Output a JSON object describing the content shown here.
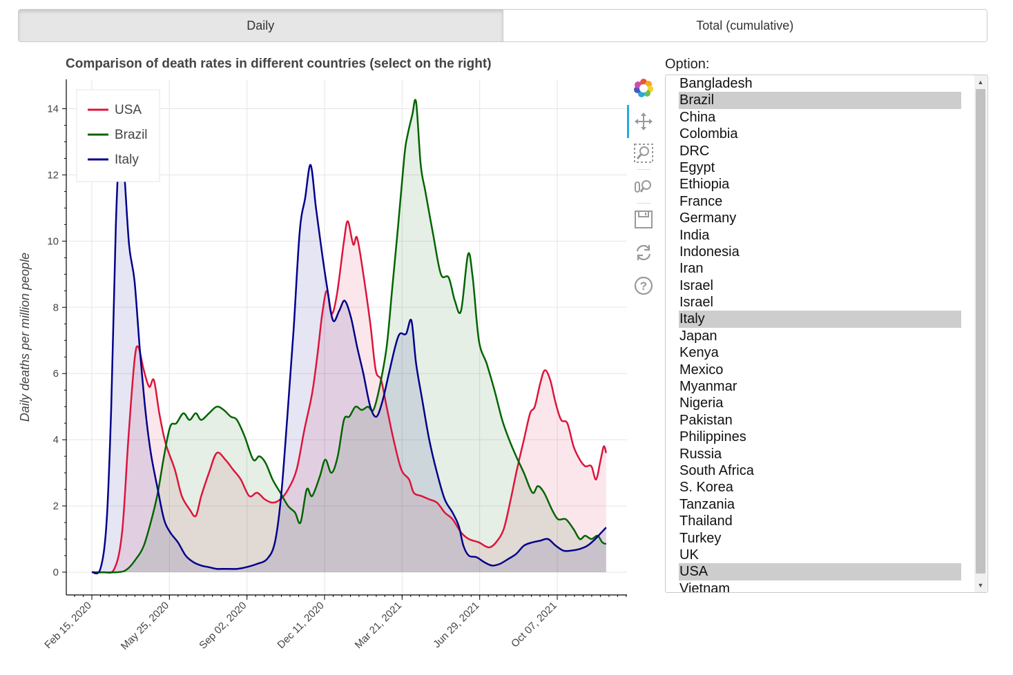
{
  "tabs": [
    {
      "label": "Daily",
      "active": true
    },
    {
      "label": "Total (cumulative)",
      "active": false
    }
  ],
  "toolbar": {
    "tools": [
      "bokeh-logo-icon",
      "pan-icon",
      "box-zoom-icon",
      "wheel-zoom-icon",
      "save-icon",
      "reset-icon",
      "help-icon"
    ]
  },
  "select": {
    "label": "Option:",
    "options": [
      "Bangladesh",
      "Brazil",
      "China",
      "Colombia",
      "DRC",
      "Egypt",
      "Ethiopia",
      "France",
      "Germany",
      "India",
      "Indonesia",
      "Iran",
      "Israel",
      "Israel",
      "Italy",
      "Japan",
      "Kenya",
      "Mexico",
      "Myanmar",
      "Nigeria",
      "Pakistan",
      "Philippines",
      "Russia",
      "South Africa",
      "S. Korea",
      "Tanzania",
      "Thailand",
      "Turkey",
      "UK",
      "USA",
      "Vietnam"
    ],
    "selected": [
      "Brazil",
      "Italy",
      "USA"
    ]
  },
  "chart_data": {
    "type": "area",
    "title": "Comparison of death rates in different countries (select on the right)",
    "xlabel": "",
    "ylabel": "Daily deaths per million people",
    "x_ticks": [
      "Feb 15, 2020",
      "May 25, 2020",
      "Sep 02, 2020",
      "Dec 11, 2020",
      "Mar 21, 2021",
      "Jun 29, 2021",
      "Oct 07, 2021"
    ],
    "x_tick_dates": [
      "2020-02-15",
      "2020-05-25",
      "2020-09-02",
      "2020-12-11",
      "2021-03-21",
      "2021-06-29",
      "2021-10-07"
    ],
    "xlim": [
      "2020-01-20",
      "2022-01-15"
    ],
    "ylim": [
      -0.7,
      14.9
    ],
    "y_ticks": [
      0,
      2,
      4,
      6,
      8,
      10,
      12,
      14
    ],
    "grid": true,
    "legend_position": "top-left",
    "series": [
      {
        "name": "USA",
        "color": "#dc143c",
        "fill": "#dc143c",
        "points": [
          [
            "2020-02-15",
            0
          ],
          [
            "2020-03-01",
            0
          ],
          [
            "2020-03-15",
            0.1
          ],
          [
            "2020-03-25",
            1.2
          ],
          [
            "2020-04-02",
            4.0
          ],
          [
            "2020-04-10",
            6.4
          ],
          [
            "2020-04-15",
            6.8
          ],
          [
            "2020-04-22",
            6.1
          ],
          [
            "2020-04-29",
            5.6
          ],
          [
            "2020-05-05",
            5.8
          ],
          [
            "2020-05-12",
            4.8
          ],
          [
            "2020-05-20",
            3.9
          ],
          [
            "2020-06-01",
            3.1
          ],
          [
            "2020-06-10",
            2.3
          ],
          [
            "2020-06-20",
            1.9
          ],
          [
            "2020-06-28",
            1.7
          ],
          [
            "2020-07-05",
            2.3
          ],
          [
            "2020-07-15",
            3.0
          ],
          [
            "2020-07-25",
            3.6
          ],
          [
            "2020-08-05",
            3.4
          ],
          [
            "2020-08-15",
            3.1
          ],
          [
            "2020-08-25",
            2.8
          ],
          [
            "2020-09-05",
            2.3
          ],
          [
            "2020-09-15",
            2.4
          ],
          [
            "2020-09-25",
            2.2
          ],
          [
            "2020-10-05",
            2.1
          ],
          [
            "2020-10-15",
            2.2
          ],
          [
            "2020-10-25",
            2.5
          ],
          [
            "2020-11-05",
            3.1
          ],
          [
            "2020-11-15",
            4.3
          ],
          [
            "2020-11-25",
            5.4
          ],
          [
            "2020-12-02",
            6.6
          ],
          [
            "2020-12-08",
            7.8
          ],
          [
            "2020-12-14",
            8.5
          ],
          [
            "2020-12-20",
            7.8
          ],
          [
            "2020-12-27",
            8.4
          ],
          [
            "2021-01-05",
            10.0
          ],
          [
            "2021-01-10",
            10.6
          ],
          [
            "2021-01-17",
            9.9
          ],
          [
            "2021-01-22",
            10.1
          ],
          [
            "2021-01-30",
            9.0
          ],
          [
            "2021-02-08",
            7.5
          ],
          [
            "2021-02-15",
            6.1
          ],
          [
            "2021-02-22",
            5.8
          ],
          [
            "2021-03-01",
            5.0
          ],
          [
            "2021-03-10",
            4.0
          ],
          [
            "2021-03-20",
            3.1
          ],
          [
            "2021-03-30",
            2.8
          ],
          [
            "2021-04-05",
            2.4
          ],
          [
            "2021-04-15",
            2.3
          ],
          [
            "2021-04-25",
            2.2
          ],
          [
            "2021-05-05",
            2.1
          ],
          [
            "2021-05-15",
            1.8
          ],
          [
            "2021-05-25",
            1.6
          ],
          [
            "2021-06-05",
            1.2
          ],
          [
            "2021-06-15",
            1.0
          ],
          [
            "2021-06-28",
            0.9
          ],
          [
            "2021-07-05",
            0.8
          ],
          [
            "2021-07-12",
            0.75
          ],
          [
            "2021-07-20",
            0.9
          ],
          [
            "2021-07-30",
            1.3
          ],
          [
            "2021-08-08",
            2.2
          ],
          [
            "2021-08-16",
            3.1
          ],
          [
            "2021-08-25",
            4.0
          ],
          [
            "2021-09-02",
            4.8
          ],
          [
            "2021-09-08",
            5.0
          ],
          [
            "2021-09-15",
            5.7
          ],
          [
            "2021-09-21",
            6.1
          ],
          [
            "2021-09-28",
            5.8
          ],
          [
            "2021-10-05",
            5.1
          ],
          [
            "2021-10-12",
            4.6
          ],
          [
            "2021-10-20",
            4.5
          ],
          [
            "2021-10-28",
            3.8
          ],
          [
            "2021-11-05",
            3.4
          ],
          [
            "2021-11-12",
            3.2
          ],
          [
            "2021-11-20",
            3.2
          ],
          [
            "2021-11-26",
            2.8
          ],
          [
            "2021-12-02",
            3.4
          ],
          [
            "2021-12-06",
            3.8
          ],
          [
            "2021-12-09",
            3.6
          ]
        ]
      },
      {
        "name": "Brazil",
        "color": "#006400",
        "fill": "#006400",
        "points": [
          [
            "2020-02-15",
            0
          ],
          [
            "2020-03-20",
            0
          ],
          [
            "2020-04-01",
            0.1
          ],
          [
            "2020-04-12",
            0.4
          ],
          [
            "2020-04-22",
            0.8
          ],
          [
            "2020-05-02",
            1.6
          ],
          [
            "2020-05-10",
            2.4
          ],
          [
            "2020-05-18",
            3.5
          ],
          [
            "2020-05-26",
            4.4
          ],
          [
            "2020-06-03",
            4.5
          ],
          [
            "2020-06-12",
            4.8
          ],
          [
            "2020-06-20",
            4.6
          ],
          [
            "2020-06-28",
            4.8
          ],
          [
            "2020-07-05",
            4.6
          ],
          [
            "2020-07-15",
            4.8
          ],
          [
            "2020-07-25",
            5.0
          ],
          [
            "2020-08-03",
            4.9
          ],
          [
            "2020-08-12",
            4.7
          ],
          [
            "2020-08-20",
            4.6
          ],
          [
            "2020-08-30",
            4.1
          ],
          [
            "2020-09-10",
            3.4
          ],
          [
            "2020-09-18",
            3.5
          ],
          [
            "2020-09-26",
            3.3
          ],
          [
            "2020-10-05",
            2.8
          ],
          [
            "2020-10-15",
            2.4
          ],
          [
            "2020-10-25",
            2.0
          ],
          [
            "2020-11-03",
            1.8
          ],
          [
            "2020-11-10",
            1.5
          ],
          [
            "2020-11-18",
            2.5
          ],
          [
            "2020-11-25",
            2.3
          ],
          [
            "2020-12-05",
            2.9
          ],
          [
            "2020-12-12",
            3.4
          ],
          [
            "2020-12-20",
            3.0
          ],
          [
            "2020-12-28",
            3.5
          ],
          [
            "2021-01-05",
            4.6
          ],
          [
            "2021-01-12",
            4.7
          ],
          [
            "2021-01-20",
            5.0
          ],
          [
            "2021-01-28",
            4.9
          ],
          [
            "2021-02-05",
            5.0
          ],
          [
            "2021-02-12",
            4.9
          ],
          [
            "2021-02-20",
            5.6
          ],
          [
            "2021-03-01",
            6.8
          ],
          [
            "2021-03-08",
            8.5
          ],
          [
            "2021-03-16",
            10.5
          ],
          [
            "2021-03-24",
            12.6
          ],
          [
            "2021-03-28",
            13.2
          ],
          [
            "2021-04-03",
            13.8
          ],
          [
            "2021-04-08",
            14.2
          ],
          [
            "2021-04-14",
            12.3
          ],
          [
            "2021-04-20",
            11.5
          ],
          [
            "2021-04-30",
            10.2
          ],
          [
            "2021-05-10",
            9.0
          ],
          [
            "2021-05-20",
            8.9
          ],
          [
            "2021-05-28",
            8.2
          ],
          [
            "2021-06-05",
            7.9
          ],
          [
            "2021-06-14",
            9.6
          ],
          [
            "2021-06-20",
            8.9
          ],
          [
            "2021-06-28",
            7.0
          ],
          [
            "2021-07-08",
            6.3
          ],
          [
            "2021-07-18",
            5.5
          ],
          [
            "2021-07-28",
            4.6
          ],
          [
            "2021-08-06",
            4.0
          ],
          [
            "2021-08-15",
            3.5
          ],
          [
            "2021-08-25",
            3.0
          ],
          [
            "2021-09-05",
            2.4
          ],
          [
            "2021-09-12",
            2.6
          ],
          [
            "2021-09-20",
            2.4
          ],
          [
            "2021-09-30",
            1.9
          ],
          [
            "2021-10-08",
            1.6
          ],
          [
            "2021-10-18",
            1.6
          ],
          [
            "2021-10-28",
            1.3
          ],
          [
            "2021-11-05",
            1.0
          ],
          [
            "2021-11-12",
            1.1
          ],
          [
            "2021-11-20",
            1.0
          ],
          [
            "2021-11-28",
            1.1
          ],
          [
            "2021-12-04",
            0.9
          ],
          [
            "2021-12-09",
            0.85
          ]
        ]
      },
      {
        "name": "Italy",
        "color": "#00008b",
        "fill": "#00008b",
        "points": [
          [
            "2020-02-15",
            0
          ],
          [
            "2020-02-26",
            0.1
          ],
          [
            "2020-03-05",
            1.5
          ],
          [
            "2020-03-11",
            5.0
          ],
          [
            "2020-03-17",
            10.5
          ],
          [
            "2020-03-22",
            12.9
          ],
          [
            "2020-03-27",
            12.3
          ],
          [
            "2020-04-03",
            9.9
          ],
          [
            "2020-04-10",
            8.8
          ],
          [
            "2020-04-17",
            6.7
          ],
          [
            "2020-04-24",
            4.9
          ],
          [
            "2020-05-01",
            3.6
          ],
          [
            "2020-05-10",
            2.5
          ],
          [
            "2020-05-18",
            1.6
          ],
          [
            "2020-05-26",
            1.2
          ],
          [
            "2020-06-05",
            0.9
          ],
          [
            "2020-06-15",
            0.5
          ],
          [
            "2020-06-25",
            0.3
          ],
          [
            "2020-07-05",
            0.2
          ],
          [
            "2020-07-15",
            0.15
          ],
          [
            "2020-07-25",
            0.1
          ],
          [
            "2020-08-05",
            0.1
          ],
          [
            "2020-08-20",
            0.1
          ],
          [
            "2020-09-01",
            0.15
          ],
          [
            "2020-09-15",
            0.25
          ],
          [
            "2020-09-28",
            0.4
          ],
          [
            "2020-10-08",
            0.9
          ],
          [
            "2020-10-16",
            2.3
          ],
          [
            "2020-10-24",
            4.7
          ],
          [
            "2020-11-01",
            7.3
          ],
          [
            "2020-11-09",
            10.3
          ],
          [
            "2020-11-16",
            11.3
          ],
          [
            "2020-11-23",
            12.3
          ],
          [
            "2020-11-30",
            11.0
          ],
          [
            "2020-12-08",
            9.6
          ],
          [
            "2020-12-15",
            8.5
          ],
          [
            "2020-12-22",
            7.6
          ],
          [
            "2020-12-30",
            7.9
          ],
          [
            "2021-01-06",
            8.2
          ],
          [
            "2021-01-14",
            7.7
          ],
          [
            "2021-01-22",
            6.8
          ],
          [
            "2021-01-30",
            6.0
          ],
          [
            "2021-02-08",
            5.0
          ],
          [
            "2021-02-16",
            4.7
          ],
          [
            "2021-02-24",
            5.2
          ],
          [
            "2021-03-04",
            6.0
          ],
          [
            "2021-03-12",
            6.8
          ],
          [
            "2021-03-18",
            7.2
          ],
          [
            "2021-03-26",
            7.2
          ],
          [
            "2021-04-02",
            7.6
          ],
          [
            "2021-04-08",
            6.3
          ],
          [
            "2021-04-16",
            5.2
          ],
          [
            "2021-04-25",
            4.0
          ],
          [
            "2021-05-05",
            3.0
          ],
          [
            "2021-05-15",
            2.2
          ],
          [
            "2021-05-25",
            1.8
          ],
          [
            "2021-06-02",
            1.4
          ],
          [
            "2021-06-08",
            0.8
          ],
          [
            "2021-06-15",
            0.5
          ],
          [
            "2021-06-25",
            0.45
          ],
          [
            "2021-07-05",
            0.3
          ],
          [
            "2021-07-15",
            0.2
          ],
          [
            "2021-07-25",
            0.25
          ],
          [
            "2021-08-05",
            0.4
          ],
          [
            "2021-08-15",
            0.55
          ],
          [
            "2021-08-25",
            0.8
          ],
          [
            "2021-09-05",
            0.9
          ],
          [
            "2021-09-15",
            0.95
          ],
          [
            "2021-09-25",
            1.0
          ],
          [
            "2021-10-05",
            0.8
          ],
          [
            "2021-10-15",
            0.65
          ],
          [
            "2021-10-25",
            0.65
          ],
          [
            "2021-11-05",
            0.7
          ],
          [
            "2021-11-15",
            0.8
          ],
          [
            "2021-11-25",
            1.0
          ],
          [
            "2021-12-03",
            1.2
          ],
          [
            "2021-12-09",
            1.35
          ]
        ]
      }
    ]
  }
}
